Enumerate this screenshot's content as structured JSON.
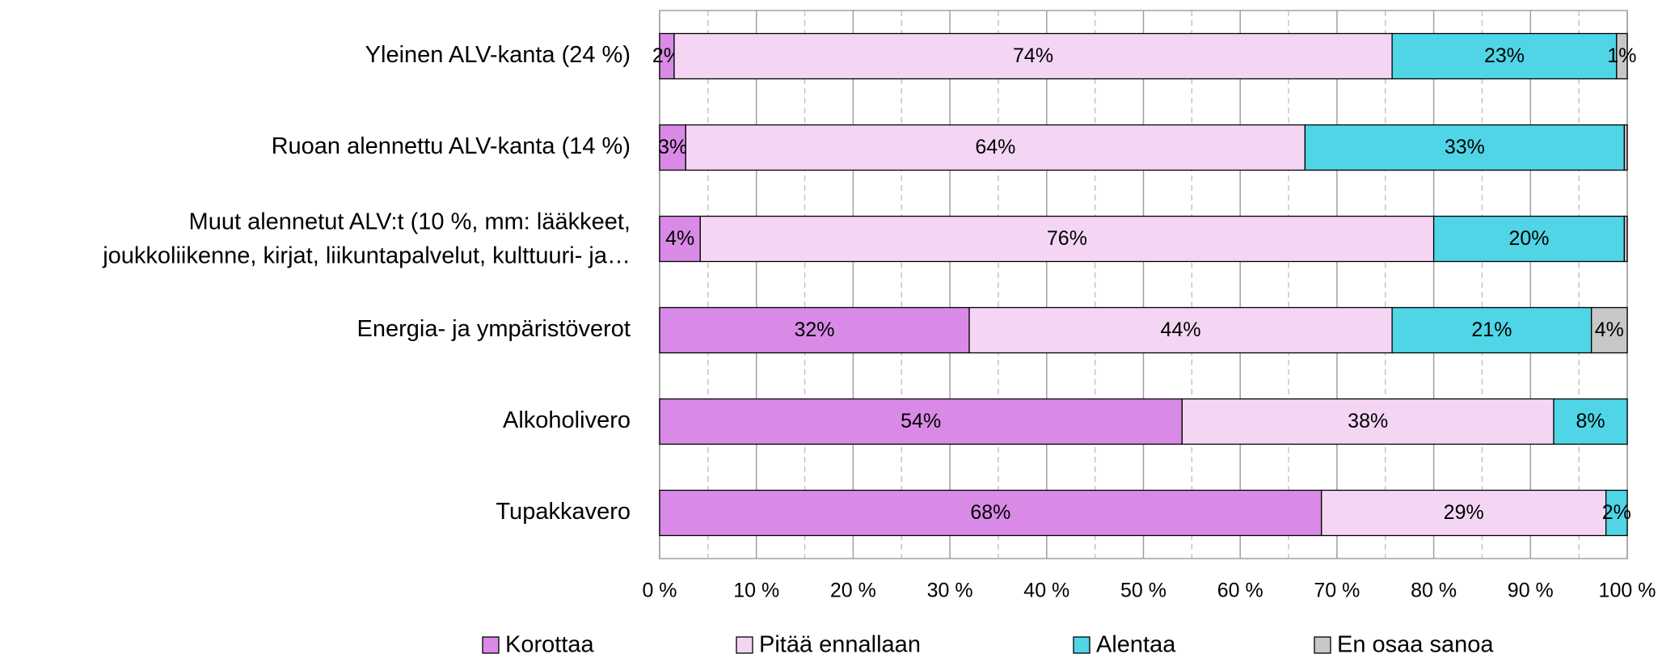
{
  "chart_data": {
    "type": "stacked_bar_horizontal",
    "categories": [
      "Yleinen ALV-kanta (24 %)",
      "Ruoan alennettu ALV-kanta (14 %)",
      [
        "Muut alennetut ALV:t (10 %, mm: lääkkeet,",
        "joukkoliikenne, kirjat, liikuntapalvelut, kulttuuri- ja…"
      ],
      "Energia- ja ympäristöverot",
      "Alkoholivero",
      "Tupakkavero"
    ],
    "series": [
      {
        "name": "Korottaa",
        "color": "#d98ae6",
        "values": [
          1.5,
          2.7,
          4.2,
          32.0,
          54.0,
          68.4
        ],
        "value_labels": [
          "2%",
          "3%",
          "4%",
          "32%",
          "54%",
          "68%"
        ]
      },
      {
        "name": "Pitää ennallaan",
        "color": "#f4d6f4",
        "values": [
          74.2,
          64.0,
          75.8,
          43.7,
          38.4,
          29.4
        ],
        "value_labels": [
          "74%",
          "64%",
          "76%",
          "44%",
          "38%",
          "29%"
        ]
      },
      {
        "name": "Alentaa",
        "color": "#4fd5e6",
        "values": [
          23.2,
          33.0,
          19.7,
          20.6,
          7.6,
          2.2
        ],
        "value_labels": [
          "23%",
          "33%",
          "20%",
          "21%",
          "8%",
          "2%"
        ]
      },
      {
        "name": "En osaa sanoa",
        "color": "#c8c8c8",
        "values": [
          1.1,
          0.3,
          0.3,
          3.7,
          0,
          0
        ],
        "value_labels": [
          "1%",
          null,
          null,
          "4%",
          null,
          null
        ]
      }
    ],
    "xlim": [
      0,
      100
    ],
    "xticks": [
      {
        "value": 0,
        "label": "0 %"
      },
      {
        "value": 10,
        "label": "10 %"
      },
      {
        "value": 20,
        "label": "20 %"
      },
      {
        "value": 30,
        "label": "30 %"
      },
      {
        "value": 40,
        "label": "40 %"
      },
      {
        "value": 50,
        "label": "50 %"
      },
      {
        "value": 60,
        "label": "60 %"
      },
      {
        "value": 70,
        "label": "70 %"
      },
      {
        "value": 80,
        "label": "80 %"
      },
      {
        "value": 90,
        "label": "90 %"
      },
      {
        "value": 100,
        "label": "100 %"
      }
    ],
    "minor_xticks": [
      5,
      15,
      25,
      35,
      45,
      55,
      65,
      75,
      85,
      95
    ],
    "grid": true,
    "legend": "bottom"
  }
}
